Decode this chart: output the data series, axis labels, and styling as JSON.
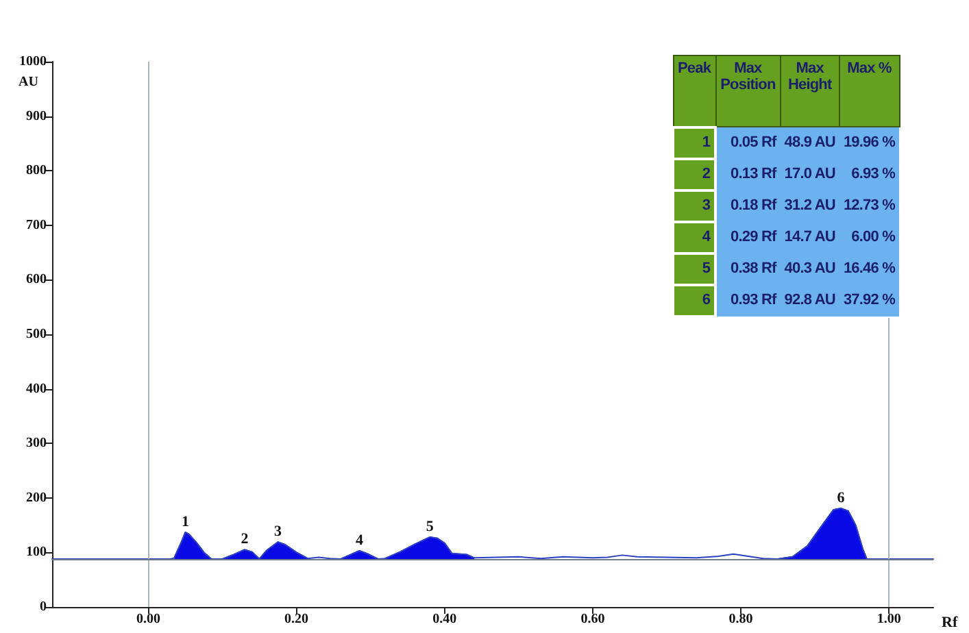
{
  "chart_data": [
    {
      "type": "line",
      "xlabel": "Rf",
      "ylabel": "AU",
      "xlim": [
        -0.13,
        1.06
      ],
      "xticks": [
        {
          "value": 0,
          "label": "0.00"
        },
        {
          "value": 0.2,
          "label": "0.20"
        },
        {
          "value": 0.4,
          "label": "0.40"
        },
        {
          "value": 0.6,
          "label": "0.60"
        },
        {
          "value": 0.8,
          "label": "0.80"
        },
        {
          "value": 1,
          "label": "1.00"
        }
      ],
      "ylim": [
        0,
        1000
      ],
      "yticks": [
        0,
        100,
        200,
        300,
        400,
        500,
        600,
        700,
        800,
        900,
        1000
      ],
      "grid": false,
      "ref_lines": [
        {
          "axis": "x",
          "value": 0,
          "label": null,
          "color": "#a9b6bd"
        },
        {
          "axis": "x",
          "value": 1,
          "label": null,
          "color": "#a9b6bd"
        },
        {
          "axis": "y",
          "value": 88,
          "label": null,
          "color": "#6d7d88"
        }
      ],
      "annotations": [
        "Peak",
        "Max Position",
        "Max Height",
        "Max %",
        "1",
        "0.05 Rf",
        "48.9 AU",
        "19.96 %",
        "2",
        "0.13 Rf",
        "17.0 AU",
        "6.93 %",
        "3",
        "0.18 Rf",
        "31.2 AU",
        "12.73 %",
        "4",
        "0.29 Rf",
        "14.7 AU",
        "6.00 %",
        "5",
        "0.38 Rf",
        "40.3 AU",
        "16.46 %",
        "6",
        "0.93 Rf",
        "92.8 AU",
        "37.92 %",
        {
          "text": "1",
          "x": 0.05,
          "y": 137
        },
        {
          "text": "2",
          "x": 0.13,
          "y": 105
        },
        {
          "text": "3",
          "x": 0.175,
          "y": 119
        },
        {
          "text": "4",
          "x": 0.285,
          "y": 103
        },
        {
          "text": "5",
          "x": 0.38,
          "y": 128
        },
        {
          "text": "6",
          "x": 0.935,
          "y": 181
        }
      ],
      "series": [
        {
          "type": "line",
          "color": "#2b3fc4",
          "x": [
            -0.13,
            0.03,
            0.035,
            0.045,
            0.05,
            0.055,
            0.065,
            0.075,
            0.085,
            0.1,
            0.115,
            0.13,
            0.14,
            0.15,
            0.16,
            0.175,
            0.185,
            0.2,
            0.215,
            0.23,
            0.245,
            0.26,
            0.275,
            0.285,
            0.295,
            0.31,
            0.32,
            0.34,
            0.36,
            0.38,
            0.39,
            0.4,
            0.41,
            0.43,
            0.44,
            0.47,
            0.5,
            0.53,
            0.56,
            0.6,
            0.62,
            0.64,
            0.66,
            0.7,
            0.74,
            0.77,
            0.79,
            0.81,
            0.83,
            0.85,
            0.87,
            0.89,
            0.91,
            0.925,
            0.935,
            0.945,
            0.955,
            0.965,
            0.97,
            1,
            1.06
          ],
          "values": [
            88,
            88,
            90,
            120,
            137,
            133,
            118,
            100,
            88,
            88,
            96,
            105,
            101,
            88,
            104,
            119,
            114,
            100,
            89,
            91,
            89,
            88,
            97,
            103,
            98,
            88,
            89,
            101,
            115,
            128,
            126,
            117,
            98,
            96,
            90,
            91,
            92,
            89,
            92,
            90,
            91,
            95,
            92,
            91,
            90,
            93,
            97,
            93,
            89,
            88,
            92,
            112,
            150,
            178,
            181,
            176,
            150,
            105,
            88,
            88,
            88
          ]
        },
        {
          "type": "area",
          "color": "#0a0ae6",
          "x": [
            0.035,
            0.045,
            0.05,
            0.055,
            0.065,
            0.075,
            0.085,
            0.09,
            0.1,
            0.115,
            0.13,
            0.14,
            0.15,
            0.16,
            0.175,
            0.185,
            0.2,
            0.215,
            0.24,
            0.26,
            0.275,
            0.285,
            0.295,
            0.31,
            0.315,
            0.32,
            0.34,
            0.36,
            0.38,
            0.39,
            0.4,
            0.41,
            0.43,
            0.44,
            0.6,
            0.85,
            0.87,
            0.89,
            0.91,
            0.925,
            0.935,
            0.945,
            0.955,
            0.965,
            0.97
          ],
          "values": [
            90,
            120,
            137,
            133,
            118,
            100,
            88,
            null,
            88,
            96,
            105,
            101,
            88,
            104,
            119,
            114,
            100,
            89,
            null,
            88,
            97,
            103,
            98,
            88,
            null,
            89,
            101,
            115,
            128,
            126,
            117,
            98,
            96,
            90,
            null,
            88,
            92,
            112,
            150,
            178,
            181,
            176,
            150,
            105,
            88
          ]
        }
      ]
    }
  ]
}
